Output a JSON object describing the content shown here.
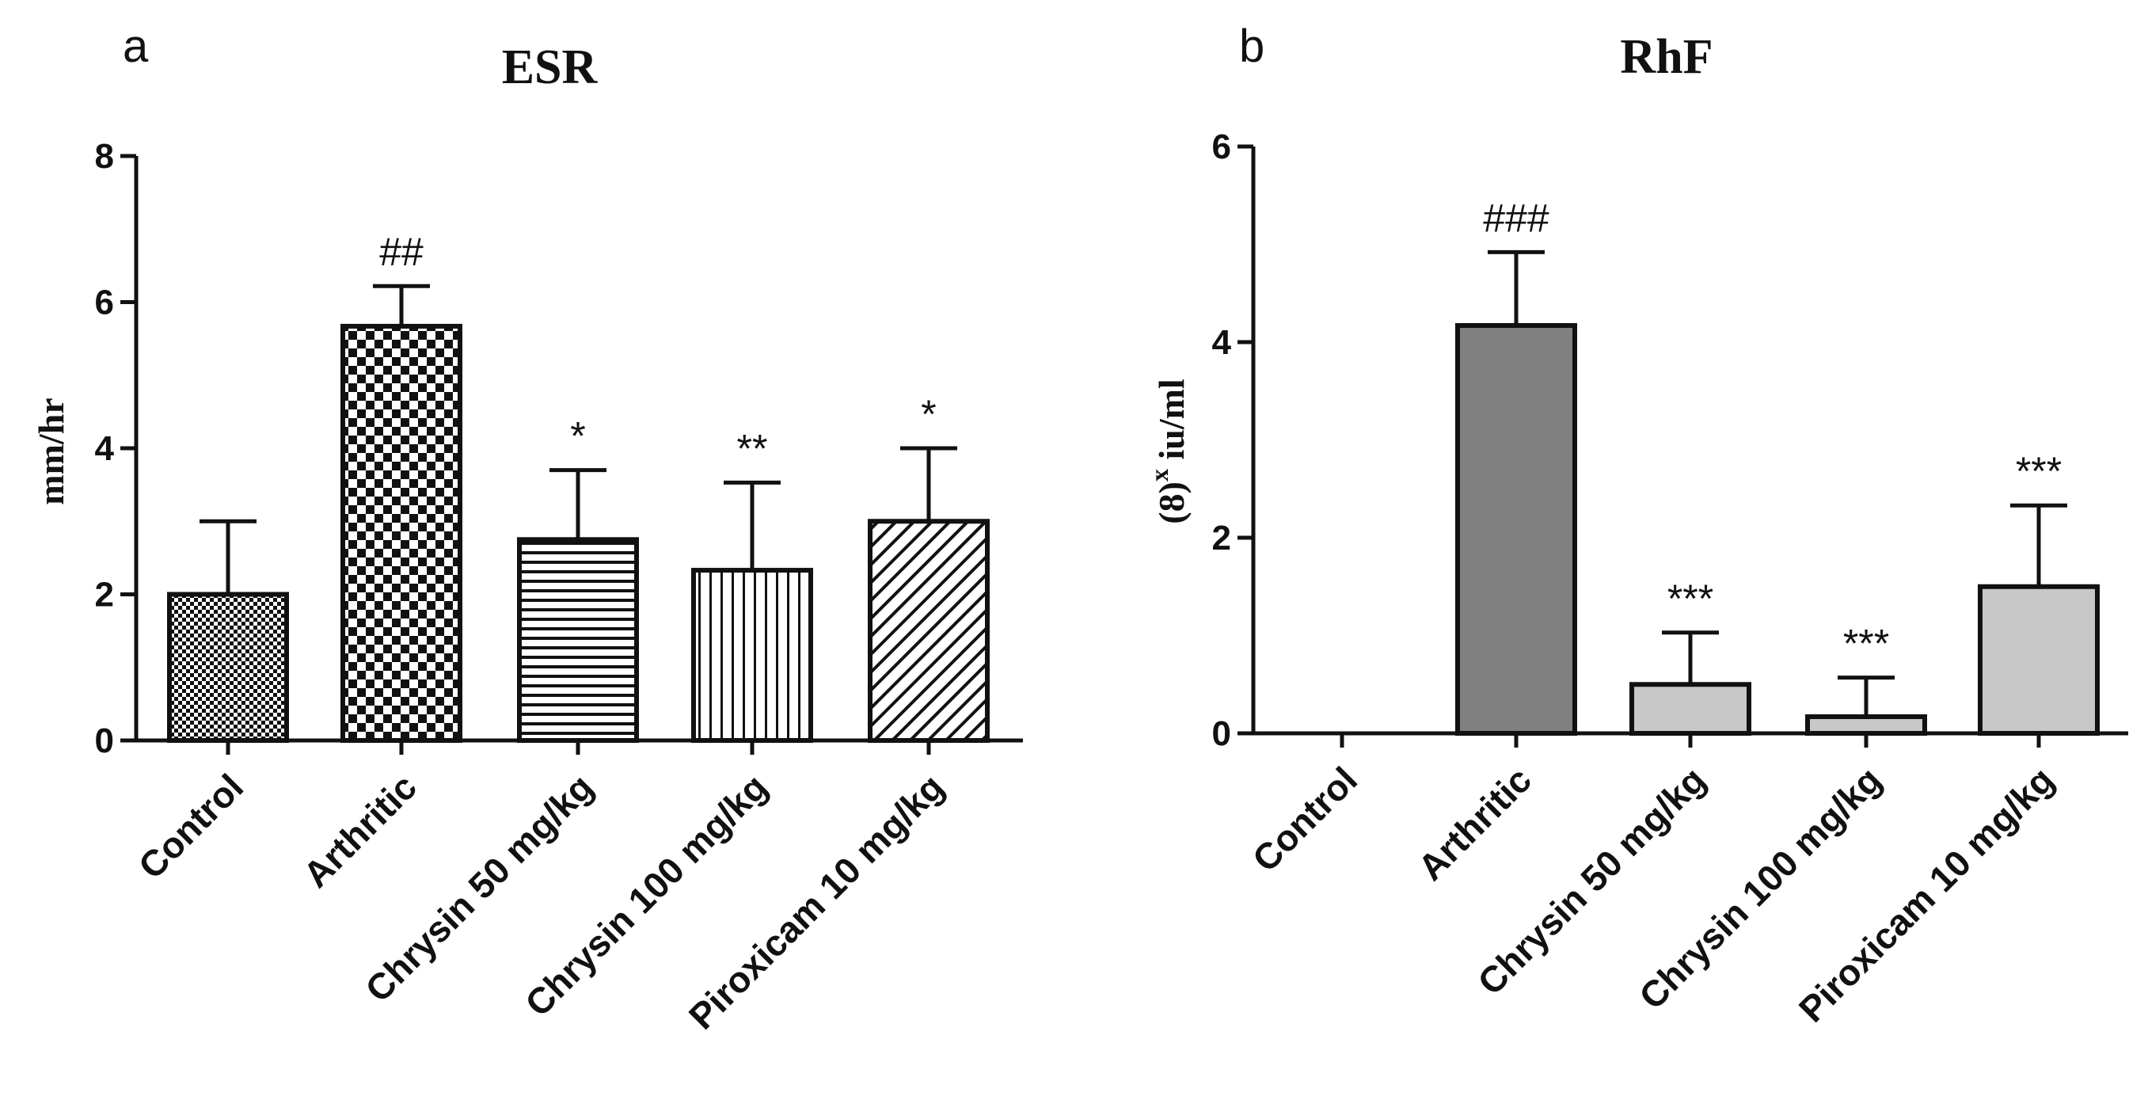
{
  "chart_data": [
    {
      "panel": "a",
      "type": "bar",
      "title": "ESR",
      "ylabel": "mm/hr",
      "xlabel": "",
      "ylim": [
        0,
        8
      ],
      "yticks": [
        0,
        2,
        4,
        6,
        8
      ],
      "categories": [
        "Control",
        "Arthritic",
        "Chrysin 50 mg/kg",
        "Chrysin 100 mg/kg",
        "Piroxicam 10 mg/kg"
      ],
      "values": [
        2.0,
        5.67,
        2.75,
        2.33,
        3.0
      ],
      "errors": [
        1.0,
        0.55,
        0.95,
        1.2,
        1.0
      ],
      "annotations": [
        "",
        "##",
        "*",
        "**",
        "*"
      ],
      "patterns": [
        "fine-checker",
        "checker",
        "horizontal-lines",
        "vertical-lines",
        "diagonal-lines"
      ]
    },
    {
      "panel": "b",
      "type": "bar",
      "title": "RhF",
      "ylabel_base": "(8)",
      "ylabel_sup": "x",
      "ylabel_rest": " iu/ml",
      "xlabel": "",
      "ylim": [
        0,
        6
      ],
      "yticks": [
        0,
        2,
        4,
        6
      ],
      "categories": [
        "Control",
        "Arthritic",
        "Chrysin 50 mg/kg",
        "Chrysin 100 mg/kg",
        "Piroxicam 10 mg/kg"
      ],
      "values": [
        0,
        4.17,
        0.5,
        0.17,
        1.5
      ],
      "errors": [
        0,
        0.75,
        0.53,
        0.4,
        0.83
      ],
      "annotations": [
        "",
        "###",
        "***",
        "***",
        "***"
      ],
      "colors": [
        "#ffffff",
        "#808080",
        "#c8c8c8",
        "#c8c8c8",
        "#c8c8c8"
      ]
    }
  ]
}
